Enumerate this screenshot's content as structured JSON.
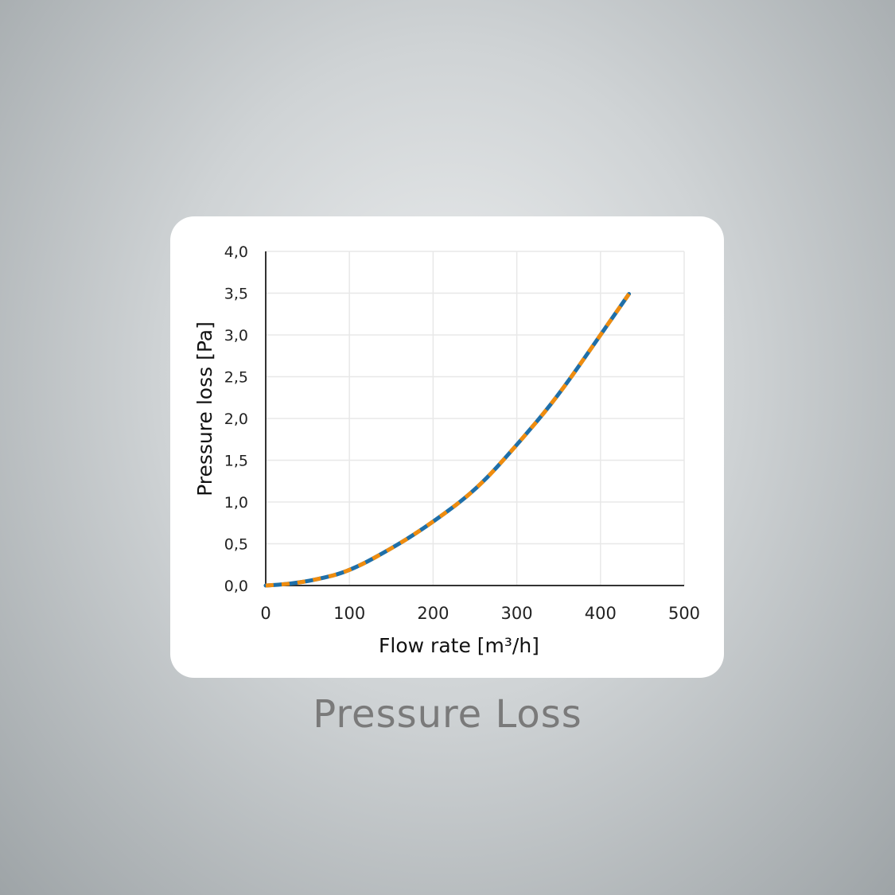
{
  "caption": "Pressure Loss",
  "colors": {
    "series_under": "#1f6fa8",
    "series_over": "#ef8c0e",
    "grid": "#e8e8e8",
    "axis": "#333333"
  },
  "chart_data": {
    "type": "line",
    "title": "",
    "xlabel": "Flow rate [m³/h]",
    "ylabel": "Pressure loss [Pa]",
    "xlim": [
      0,
      500
    ],
    "ylim": [
      0,
      4.0
    ],
    "xticks": [
      "0",
      "100",
      "200",
      "300",
      "400",
      "500"
    ],
    "yticks": [
      "0,0",
      "0,5",
      "1,0",
      "1,5",
      "2,0",
      "2,5",
      "3,0",
      "3,5",
      "4,0"
    ],
    "grid": true,
    "series": [
      {
        "name": "pressure loss",
        "style": "dashed two-tone",
        "x": [
          0,
          30,
          60,
          100,
          157,
          200,
          252,
          300,
          348,
          400,
          434
        ],
        "y": [
          0,
          0.02,
          0.07,
          0.17,
          0.48,
          0.76,
          1.15,
          1.68,
          2.25,
          3.0,
          3.49
        ]
      }
    ]
  }
}
